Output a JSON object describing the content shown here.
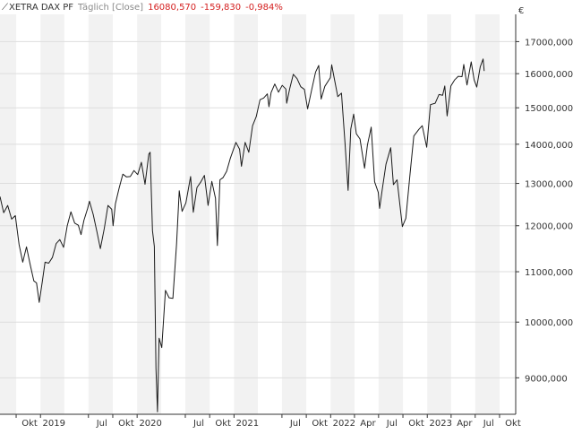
{
  "legend": {
    "icon": "line-chart-icon",
    "name": "XETRA DAX PF",
    "mode": "Täglich [Close]",
    "last": "16080,570",
    "change": "-159,830",
    "change_pct": "-0,984%"
  },
  "colors": {
    "band": "#f2f2f2",
    "grid": "#dddddd",
    "axis": "#333333",
    "line": "#1a1a1a",
    "negative": "#d42020"
  },
  "chart_data": {
    "type": "line",
    "title": "",
    "xlabel": "",
    "ylabel": "",
    "currency": "€",
    "y_scale": "log",
    "ylim": [
      8400,
      17900
    ],
    "xlim": [
      "2018-08-01",
      "2023-12-01"
    ],
    "grid": true,
    "y_ticks": [
      {
        "value": 9000,
        "label": "9000,000"
      },
      {
        "value": 10000,
        "label": "10000,000"
      },
      {
        "value": 11000,
        "label": "11000,000"
      },
      {
        "value": 12000,
        "label": "12000,000"
      },
      {
        "value": 13000,
        "label": "13000,000"
      },
      {
        "value": 14000,
        "label": "14000,000"
      },
      {
        "value": 15000,
        "label": "15000,000"
      },
      {
        "value": 16000,
        "label": "16000,000"
      },
      {
        "value": 17000,
        "label": "17000,000"
      }
    ],
    "x_ticks": [
      {
        "date": "2018-10-01",
        "label": "Okt"
      },
      {
        "date": "2019-01-01",
        "label": "2019"
      },
      {
        "date": "2019-07-01",
        "label": "Jul"
      },
      {
        "date": "2019-10-01",
        "label": "Okt"
      },
      {
        "date": "2020-01-01",
        "label": "2020"
      },
      {
        "date": "2020-07-01",
        "label": "Jul"
      },
      {
        "date": "2020-10-01",
        "label": "Okt"
      },
      {
        "date": "2021-01-01",
        "label": "2021"
      },
      {
        "date": "2021-07-01",
        "label": "Jul"
      },
      {
        "date": "2021-10-01",
        "label": "Okt"
      },
      {
        "date": "2022-01-01",
        "label": "2022"
      },
      {
        "date": "2022-04-01",
        "label": "Apr"
      },
      {
        "date": "2022-07-01",
        "label": "Jul"
      },
      {
        "date": "2022-10-01",
        "label": "Okt"
      },
      {
        "date": "2023-01-01",
        "label": "2023"
      },
      {
        "date": "2023-04-01",
        "label": "Apr"
      },
      {
        "date": "2023-07-01",
        "label": "Jul"
      },
      {
        "date": "2023-10-01",
        "label": "Okt"
      }
    ],
    "bands": [
      [
        "2018-08-01",
        "2018-10-01"
      ],
      [
        "2019-01-01",
        "2019-04-01"
      ],
      [
        "2019-07-01",
        "2019-10-01"
      ],
      [
        "2020-01-01",
        "2020-04-01"
      ],
      [
        "2020-07-01",
        "2020-10-01"
      ],
      [
        "2021-01-01",
        "2021-04-01"
      ],
      [
        "2021-07-01",
        "2021-10-01"
      ],
      [
        "2022-01-01",
        "2022-04-01"
      ],
      [
        "2022-07-01",
        "2022-10-01"
      ],
      [
        "2023-01-01",
        "2023-04-01"
      ],
      [
        "2023-07-01",
        "2023-10-01"
      ]
    ],
    "series": [
      {
        "points": [
          [
            "2018-08-01",
            12680
          ],
          [
            "2018-08-15",
            12300
          ],
          [
            "2018-08-30",
            12470
          ],
          [
            "2018-09-14",
            12150
          ],
          [
            "2018-09-28",
            12230
          ],
          [
            "2018-10-12",
            11580
          ],
          [
            "2018-10-26",
            11200
          ],
          [
            "2018-11-09",
            11530
          ],
          [
            "2018-11-23",
            11150
          ],
          [
            "2018-12-07",
            10810
          ],
          [
            "2018-12-17",
            10770
          ],
          [
            "2018-12-27",
            10380
          ],
          [
            "2019-01-08",
            10800
          ],
          [
            "2019-01-18",
            11200
          ],
          [
            "2019-02-01",
            11180
          ],
          [
            "2019-02-15",
            11300
          ],
          [
            "2019-03-01",
            11600
          ],
          [
            "2019-03-15",
            11690
          ],
          [
            "2019-03-29",
            11520
          ],
          [
            "2019-04-12",
            12000
          ],
          [
            "2019-04-26",
            12320
          ],
          [
            "2019-05-10",
            12060
          ],
          [
            "2019-05-24",
            12010
          ],
          [
            "2019-06-03",
            11800
          ],
          [
            "2019-06-14",
            12120
          ],
          [
            "2019-06-28",
            12400
          ],
          [
            "2019-07-05",
            12570
          ],
          [
            "2019-07-19",
            12260
          ],
          [
            "2019-08-02",
            11870
          ],
          [
            "2019-08-15",
            11490
          ],
          [
            "2019-08-30",
            11940
          ],
          [
            "2019-09-13",
            12470
          ],
          [
            "2019-09-27",
            12380
          ],
          [
            "2019-10-02",
            12000
          ],
          [
            "2019-10-11",
            12510
          ],
          [
            "2019-10-25",
            12890
          ],
          [
            "2019-11-08",
            13230
          ],
          [
            "2019-11-22",
            13160
          ],
          [
            "2019-12-06",
            13170
          ],
          [
            "2019-12-20",
            13320
          ],
          [
            "2020-01-03",
            13220
          ],
          [
            "2020-01-17",
            13530
          ],
          [
            "2020-01-31",
            12980
          ],
          [
            "2020-02-14",
            13740
          ],
          [
            "2020-02-19",
            13790
          ],
          [
            "2020-02-28",
            11890
          ],
          [
            "2020-03-06",
            11540
          ],
          [
            "2020-03-12",
            9160
          ],
          [
            "2020-03-18",
            8440
          ],
          [
            "2020-03-24",
            9700
          ],
          [
            "2020-04-03",
            9530
          ],
          [
            "2020-04-17",
            10620
          ],
          [
            "2020-05-01",
            10470
          ],
          [
            "2020-05-15",
            10460
          ],
          [
            "2020-05-29",
            11590
          ],
          [
            "2020-06-08",
            12820
          ],
          [
            "2020-06-19",
            12330
          ],
          [
            "2020-07-03",
            12530
          ],
          [
            "2020-07-21",
            13170
          ],
          [
            "2020-07-31",
            12310
          ],
          [
            "2020-08-14",
            12900
          ],
          [
            "2020-08-28",
            13030
          ],
          [
            "2020-09-11",
            13200
          ],
          [
            "2020-09-25",
            12470
          ],
          [
            "2020-10-09",
            13050
          ],
          [
            "2020-10-23",
            12640
          ],
          [
            "2020-10-30",
            11560
          ],
          [
            "2020-11-09",
            13090
          ],
          [
            "2020-11-20",
            13140
          ],
          [
            "2020-12-04",
            13300
          ],
          [
            "2020-12-18",
            13630
          ],
          [
            "2021-01-08",
            14050
          ],
          [
            "2021-01-22",
            13870
          ],
          [
            "2021-01-29",
            13430
          ],
          [
            "2021-02-12",
            14050
          ],
          [
            "2021-02-26",
            13790
          ],
          [
            "2021-03-12",
            14500
          ],
          [
            "2021-03-26",
            14750
          ],
          [
            "2021-04-09",
            15230
          ],
          [
            "2021-04-23",
            15280
          ],
          [
            "2021-05-07",
            15400
          ],
          [
            "2021-05-13",
            15030
          ],
          [
            "2021-05-21",
            15440
          ],
          [
            "2021-06-04",
            15690
          ],
          [
            "2021-06-18",
            15450
          ],
          [
            "2021-07-02",
            15650
          ],
          [
            "2021-07-16",
            15540
          ],
          [
            "2021-07-19",
            15130
          ],
          [
            "2021-07-30",
            15540
          ],
          [
            "2021-08-13",
            15980
          ],
          [
            "2021-08-27",
            15850
          ],
          [
            "2021-09-10",
            15610
          ],
          [
            "2021-09-24",
            15530
          ],
          [
            "2021-10-06",
            14970
          ],
          [
            "2021-10-22",
            15540
          ],
          [
            "2021-11-05",
            16050
          ],
          [
            "2021-11-17",
            16250
          ],
          [
            "2021-11-26",
            15250
          ],
          [
            "2021-12-10",
            15620
          ],
          [
            "2021-12-31",
            15880
          ],
          [
            "2022-01-05",
            16270
          ],
          [
            "2022-01-14",
            15880
          ],
          [
            "2022-01-28",
            15320
          ],
          [
            "2022-02-11",
            15420
          ],
          [
            "2022-02-24",
            14050
          ],
          [
            "2022-03-08",
            12830
          ],
          [
            "2022-03-18",
            14410
          ],
          [
            "2022-03-29",
            14820
          ],
          [
            "2022-04-08",
            14280
          ],
          [
            "2022-04-22",
            14140
          ],
          [
            "2022-05-09",
            13380
          ],
          [
            "2022-05-20",
            13980
          ],
          [
            "2022-06-03",
            14460
          ],
          [
            "2022-06-16",
            13040
          ],
          [
            "2022-06-30",
            12780
          ],
          [
            "2022-07-05",
            12400
          ],
          [
            "2022-07-15",
            12860
          ],
          [
            "2022-07-29",
            13480
          ],
          [
            "2022-08-16",
            13910
          ],
          [
            "2022-08-26",
            12970
          ],
          [
            "2022-09-09",
            13090
          ],
          [
            "2022-09-29",
            11980
          ],
          [
            "2022-10-12",
            12170
          ],
          [
            "2022-10-28",
            13240
          ],
          [
            "2022-11-11",
            14220
          ],
          [
            "2022-11-30",
            14400
          ],
          [
            "2022-12-13",
            14500
          ],
          [
            "2022-12-30",
            13920
          ],
          [
            "2023-01-13",
            15090
          ],
          [
            "2023-01-31",
            15130
          ],
          [
            "2023-02-14",
            15380
          ],
          [
            "2023-02-28",
            15360
          ],
          [
            "2023-03-08",
            15630
          ],
          [
            "2023-03-17",
            14770
          ],
          [
            "2023-03-31",
            15630
          ],
          [
            "2023-04-14",
            15810
          ],
          [
            "2023-04-28",
            15920
          ],
          [
            "2023-05-12",
            15910
          ],
          [
            "2023-05-19",
            16280
          ],
          [
            "2023-05-31",
            15660
          ],
          [
            "2023-06-16",
            16360
          ],
          [
            "2023-06-27",
            15810
          ],
          [
            "2023-07-07",
            15600
          ],
          [
            "2023-07-20",
            16210
          ],
          [
            "2023-07-31",
            16450
          ],
          [
            "2023-08-04",
            16080
          ]
        ]
      }
    ]
  }
}
